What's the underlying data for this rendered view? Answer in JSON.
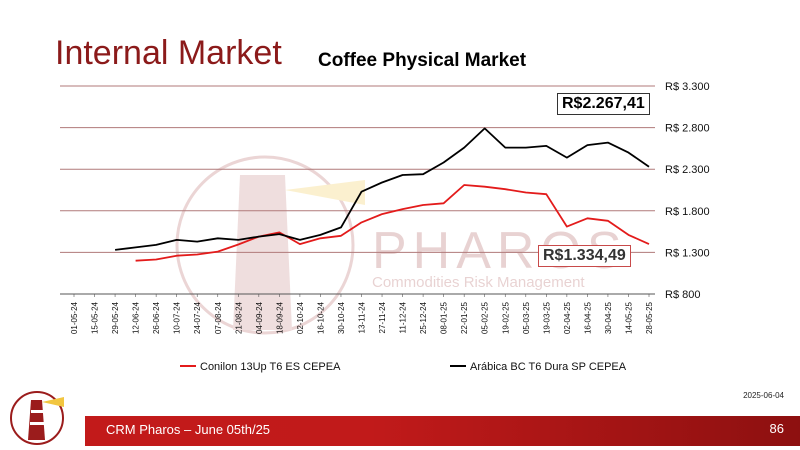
{
  "slide": {
    "title": "Internal Market",
    "date": "2025-06-04",
    "footer": "CRM Pharos –  June 05th/25",
    "page_number": "86"
  },
  "watermark": {
    "brand": "PHAROS",
    "tagline": "Commodities Risk Management"
  },
  "colors": {
    "brand_red": "#8b1a1a",
    "conilon": "#e31b1b",
    "arabica": "#000000",
    "gridline": "#b07a7a"
  },
  "chart_data": {
    "type": "line",
    "title": "Coffee Physical Market",
    "ylabel": "",
    "xlabel": "",
    "ylim": [
      800,
      3300
    ],
    "y_ticks": [
      "R$ 800",
      "R$ 1.300",
      "R$ 1.800",
      "R$ 2.300",
      "R$ 2.800",
      "R$ 3.300"
    ],
    "y_tick_values": [
      800,
      1300,
      1800,
      2300,
      2800,
      3300
    ],
    "categories": [
      "01-05-24",
      "15-05-24",
      "29-05-24",
      "12-06-24",
      "26-06-24",
      "10-07-24",
      "24-07-24",
      "07-08-24",
      "21-08-24",
      "04-09-24",
      "18-09-24",
      "02-10-24",
      "16-10-24",
      "30-10-24",
      "13-11-24",
      "27-11-24",
      "11-12-24",
      "25-12-24",
      "08-01-25",
      "22-01-25",
      "05-02-25",
      "19-02-25",
      "05-03-25",
      "19-03-25",
      "02-04-25",
      "16-04-25",
      "30-04-25",
      "14-05-25",
      "28-05-25"
    ],
    "series": [
      {
        "name": "Conilon 13Up T6 ES CEPEA",
        "values": [
          null,
          null,
          null,
          1200,
          1215,
          1260,
          1275,
          1310,
          1395,
          1490,
          1540,
          1400,
          1470,
          1500,
          1660,
          1760,
          1820,
          1870,
          1890,
          2110,
          2090,
          2060,
          2020,
          2000,
          1610,
          1710,
          1680,
          1510,
          1400
        ]
      },
      {
        "name": "Arábica BC T6 Dura SP CEPEA",
        "values": [
          null,
          null,
          1330,
          1360,
          1390,
          1450,
          1430,
          1470,
          1450,
          1490,
          1520,
          1450,
          1510,
          1600,
          2030,
          2140,
          2230,
          2240,
          2380,
          2560,
          2790,
          2560,
          2560,
          2580,
          2440,
          2590,
          2620,
          2500,
          2330
        ]
      }
    ],
    "annotations": [
      {
        "text": "R$2.267,41",
        "series": 1,
        "value": 2267.41
      },
      {
        "text": "R$1.334,49",
        "series": 0,
        "value": 1334.49
      }
    ],
    "legend_position": "bottom"
  }
}
